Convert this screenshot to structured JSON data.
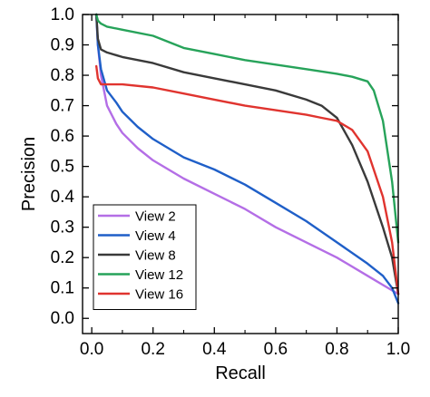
{
  "chart_data": {
    "type": "line",
    "xlabel": "Recall",
    "ylabel": "Precision",
    "xlim": [
      -0.03,
      1.0
    ],
    "ylim": [
      -0.05,
      1.0
    ],
    "xticks": [
      "0.0",
      "0.2",
      "0.4",
      "0.6",
      "0.8",
      "1.0"
    ],
    "yticks": [
      "0.0",
      "0.1",
      "0.2",
      "0.3",
      "0.4",
      "0.5",
      "0.6",
      "0.7",
      "0.8",
      "0.9",
      "1.0"
    ],
    "grid": false,
    "legend_position": "bottom-left",
    "series": [
      {
        "name": "View 2",
        "color": "#b46ee6",
        "x": [
          0.015,
          0.02,
          0.03,
          0.05,
          0.08,
          0.1,
          0.15,
          0.2,
          0.3,
          0.4,
          0.5,
          0.6,
          0.7,
          0.8,
          0.9,
          0.95,
          1.0
        ],
        "y": [
          1.0,
          0.9,
          0.8,
          0.7,
          0.64,
          0.61,
          0.56,
          0.52,
          0.46,
          0.41,
          0.36,
          0.3,
          0.25,
          0.2,
          0.14,
          0.11,
          0.08
        ]
      },
      {
        "name": "View 4",
        "color": "#1f5fc8",
        "x": [
          0.015,
          0.02,
          0.03,
          0.05,
          0.08,
          0.1,
          0.15,
          0.2,
          0.3,
          0.4,
          0.5,
          0.6,
          0.7,
          0.8,
          0.9,
          0.95,
          0.98,
          1.0
        ],
        "y": [
          1.0,
          0.9,
          0.82,
          0.75,
          0.71,
          0.68,
          0.63,
          0.59,
          0.53,
          0.49,
          0.44,
          0.38,
          0.32,
          0.25,
          0.18,
          0.14,
          0.1,
          0.05
        ]
      },
      {
        "name": "View 8",
        "color": "#3a3a3a",
        "x": [
          0.015,
          0.02,
          0.03,
          0.05,
          0.1,
          0.2,
          0.3,
          0.4,
          0.5,
          0.6,
          0.7,
          0.75,
          0.8,
          0.85,
          0.9,
          0.95,
          0.98,
          1.0
        ],
        "y": [
          1.0,
          0.92,
          0.885,
          0.875,
          0.86,
          0.84,
          0.81,
          0.79,
          0.77,
          0.75,
          0.72,
          0.7,
          0.66,
          0.57,
          0.45,
          0.3,
          0.2,
          0.08
        ]
      },
      {
        "name": "View 12",
        "color": "#27a35a",
        "x": [
          0.015,
          0.02,
          0.03,
          0.05,
          0.1,
          0.2,
          0.3,
          0.4,
          0.5,
          0.6,
          0.7,
          0.8,
          0.85,
          0.9,
          0.92,
          0.95,
          0.98,
          1.0
        ],
        "y": [
          1.0,
          0.98,
          0.97,
          0.96,
          0.95,
          0.93,
          0.89,
          0.87,
          0.85,
          0.835,
          0.82,
          0.805,
          0.795,
          0.78,
          0.75,
          0.65,
          0.45,
          0.25
        ]
      },
      {
        "name": "View 16",
        "color": "#e0342f",
        "x": [
          0.015,
          0.02,
          0.03,
          0.05,
          0.1,
          0.2,
          0.3,
          0.4,
          0.5,
          0.6,
          0.7,
          0.75,
          0.8,
          0.85,
          0.9,
          0.95,
          0.98,
          1.0
        ],
        "y": [
          0.83,
          0.79,
          0.77,
          0.77,
          0.77,
          0.76,
          0.74,
          0.72,
          0.7,
          0.685,
          0.67,
          0.66,
          0.65,
          0.62,
          0.55,
          0.4,
          0.25,
          0.08
        ]
      }
    ]
  }
}
